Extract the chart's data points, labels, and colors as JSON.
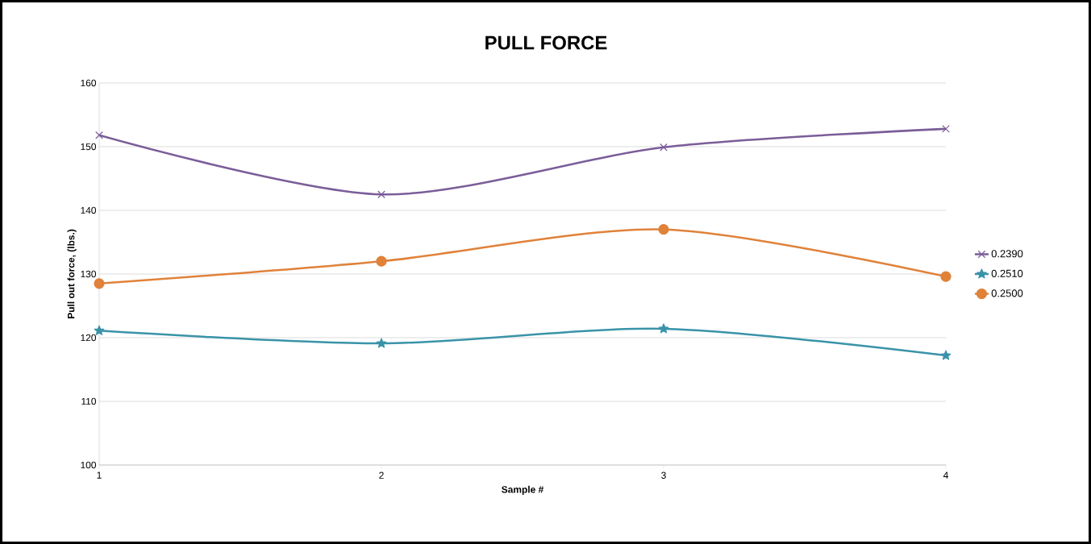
{
  "chart_data": {
    "type": "line",
    "title": "PULL FORCE",
    "xlabel": "Sample #",
    "ylabel": "Pull out force, (lbs.)",
    "x": [
      1,
      2,
      3,
      4
    ],
    "series": [
      {
        "name": "0.2390",
        "color": "#7b5d99",
        "marker": "cross",
        "values": [
          151.8,
          142.5,
          149.9,
          152.8
        ]
      },
      {
        "name": "0.2510",
        "color": "#3a93a8",
        "marker": "star",
        "values": [
          121.1,
          119.1,
          121.4,
          117.2
        ]
      },
      {
        "name": "0.2500",
        "color": "#e0823a",
        "marker": "circle",
        "values": [
          128.5,
          132.0,
          137.0,
          129.6
        ]
      }
    ],
    "xlim": [
      1,
      4
    ],
    "xticks": [
      1,
      2,
      3,
      4
    ],
    "ylim": [
      100,
      160
    ],
    "yticks": [
      100,
      110,
      120,
      130,
      140,
      150,
      160
    ],
    "grid": "y",
    "legend": "right",
    "line_style": "solid"
  }
}
